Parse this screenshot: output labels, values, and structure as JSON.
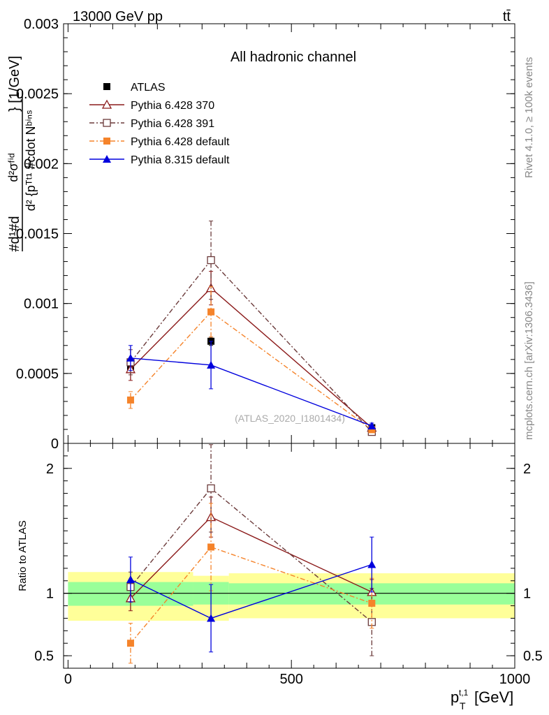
{
  "header": {
    "left": "13000 GeV pp",
    "right": "tt̄"
  },
  "side_text": {
    "rivet": "Rivet 4.1.0, ≥ 100k events",
    "mcplots": "mcplots.cern.ch [arXiv:1306.3436]"
  },
  "chart_data": [
    {
      "name": "main",
      "type": "line",
      "title": "All hadronic channel",
      "watermark": "(ATLAS_2020_I1801434)",
      "xlabel": "p_T^{t,1} [GeV]",
      "ylabel_lines": [
        "d²σᶠⁱᵈ",
        "d² {pᵀᵗ¹ #cdot Nᵇⁱⁿˢ",
        "#d¹#d",
        "} [1/GeV]"
      ],
      "xlim": [
        -10,
        1000
      ],
      "ylim": [
        0,
        0.003
      ],
      "yticks": [
        0,
        0.0005,
        0.001,
        0.0015,
        0.002,
        0.0025,
        0.003
      ],
      "ytick_labels": [
        "0",
        "0.0005",
        "0.001",
        "0.0015",
        "0.002",
        "0.0025",
        "0.003"
      ],
      "grid": false,
      "legend_position": "top-left",
      "bins": [
        [
          0,
          280
        ],
        [
          280,
          360
        ],
        [
          360,
          1000
        ]
      ],
      "series": [
        {
          "name": "ATLAS",
          "color": "#000000",
          "marker": "square",
          "x": [
            140,
            320,
            680
          ],
          "values": [
            0.00055,
            0.00073,
            0.000112
          ],
          "err": [
            3e-05,
            3e-05,
            1e-05
          ]
        },
        {
          "name": "Pythia 6.428 370",
          "color": "#8b1a1a",
          "marker": "triangle-open",
          "dash": "solid",
          "x": [
            140,
            320,
            680
          ],
          "values": [
            0.00053,
            0.00111,
            0.000112
          ],
          "err": [
            8e-05,
            0.00012,
            1.5e-05
          ]
        },
        {
          "name": "Pythia 6.428 391",
          "color": "#6b3a3a",
          "marker": "square-open",
          "dash": "dashdot",
          "x": [
            140,
            320,
            680
          ],
          "values": [
            0.00058,
            0.00131,
            8.2e-05
          ],
          "err": [
            9e-05,
            0.00028,
            2e-05
          ]
        },
        {
          "name": "Pythia 6.428 default",
          "color": "#f5832a",
          "marker": "square",
          "dash": "dashdot",
          "x": [
            140,
            320,
            680
          ],
          "values": [
            0.00031,
            0.00094,
            9.8e-05
          ],
          "err": [
            6e-05,
            0.00018,
            1.8e-05
          ]
        },
        {
          "name": "Pythia 8.315 default",
          "color": "#0000dd",
          "marker": "triangle",
          "dash": "solid",
          "x": [
            140,
            320,
            680
          ],
          "values": [
            0.00061,
            0.00056,
            0.000125
          ],
          "err": [
            9e-05,
            0.00017,
            2e-05
          ]
        }
      ]
    },
    {
      "name": "ratio",
      "type": "line",
      "ylabel": "Ratio to ATLAS",
      "xlim": [
        -10,
        1000
      ],
      "ylim": [
        0.4,
        2.2
      ],
      "yticks": [
        0.5,
        1,
        2
      ],
      "ytick_labels": [
        "0.5",
        "1",
        "2"
      ],
      "xticks": [
        0,
        500,
        1000
      ],
      "xtick_labels": [
        "0",
        "500",
        "1000"
      ],
      "bands": [
        {
          "x0": 0,
          "x1": 280,
          "yellow": [
            0.78,
            1.17
          ],
          "green": [
            0.9,
            1.09
          ]
        },
        {
          "x0": 280,
          "x1": 360,
          "yellow": [
            0.78,
            1.14
          ],
          "green": [
            0.91,
            1.09
          ]
        },
        {
          "x0": 360,
          "x1": 1000,
          "yellow": [
            0.8,
            1.16
          ],
          "green": [
            0.91,
            1.08
          ]
        }
      ],
      "series": [
        {
          "name": "Pythia 6.428 370",
          "values": [
            0.96,
            1.61,
            1.01
          ],
          "err": [
            0.1,
            0.16,
            0.1
          ]
        },
        {
          "name": "Pythia 6.428 391",
          "values": [
            1.05,
            1.84,
            0.77
          ],
          "err": [
            0.12,
            0.35,
            0.27
          ]
        },
        {
          "name": "Pythia 6.428 default",
          "values": [
            0.6,
            1.37,
            0.92
          ],
          "err": [
            0.16,
            0.35,
            0.2
          ]
        },
        {
          "name": "Pythia 8.315 default",
          "values": [
            1.11,
            0.8,
            1.23
          ],
          "err": [
            0.18,
            0.27,
            0.22
          ]
        }
      ]
    }
  ]
}
